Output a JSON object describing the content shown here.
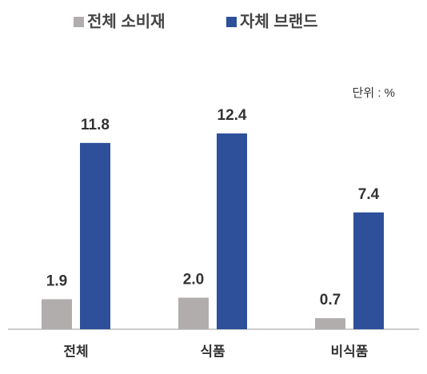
{
  "chart_data": {
    "type": "bar",
    "unit_note": "단위 : %",
    "categories": [
      "전체",
      "식품",
      "비식품"
    ],
    "series": [
      {
        "name": "전체 소비재",
        "color": "#b2adad",
        "values": [
          1.9,
          2.0,
          0.7
        ],
        "value_labels": [
          "1.9",
          "2.0",
          "0.7"
        ]
      },
      {
        "name": "자체 브랜드",
        "color": "#2e4f9a",
        "values": [
          11.8,
          12.4,
          7.4
        ],
        "value_labels": [
          "11.8",
          "12.4",
          "7.4"
        ]
      }
    ],
    "grid": false
  }
}
